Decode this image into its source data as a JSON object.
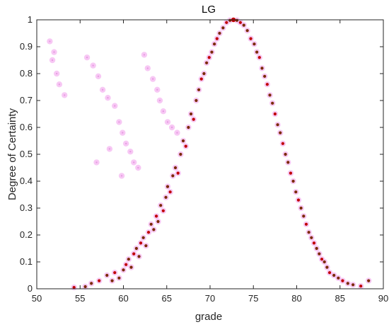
{
  "chart_data": {
    "type": "scatter",
    "title": "LG",
    "xlabel": "grade",
    "ylabel": "Degree of Certainty",
    "xlim": [
      50,
      90
    ],
    "ylim": [
      0,
      1
    ],
    "xticks": [
      50,
      55,
      60,
      65,
      70,
      75,
      80,
      85,
      90
    ],
    "yticks": [
      0,
      0.1,
      0.2,
      0.3,
      0.4,
      0.5,
      0.6,
      0.7,
      0.8,
      0.9,
      1
    ],
    "ytick_labels": [
      "0",
      "0.1",
      "0.2",
      "0.3",
      "0.4",
      "0.5",
      "0.6",
      "0.7",
      "0.8",
      "0.9",
      "1"
    ],
    "grid": false,
    "legend": "none",
    "peak": {
      "x": 72.7,
      "y": 1.0
    },
    "points_left": [
      [
        54.3,
        0.005
      ],
      [
        55.6,
        0.008
      ],
      [
        56.3,
        0.02
      ],
      [
        57.2,
        0.03
      ],
      [
        58.1,
        0.05
      ],
      [
        58.7,
        0.03
      ],
      [
        59.0,
        0.06
      ],
      [
        59.5,
        0.04
      ],
      [
        60.0,
        0.07
      ],
      [
        60.3,
        0.09
      ],
      [
        60.6,
        0.11
      ],
      [
        60.9,
        0.08
      ],
      [
        61.2,
        0.13
      ],
      [
        61.5,
        0.15
      ],
      [
        61.8,
        0.12
      ],
      [
        62.0,
        0.17
      ],
      [
        62.3,
        0.19
      ],
      [
        62.6,
        0.16
      ],
      [
        62.9,
        0.21
      ],
      [
        63.2,
        0.24
      ],
      [
        63.5,
        0.22
      ],
      [
        63.8,
        0.27
      ],
      [
        64.0,
        0.25
      ],
      [
        64.3,
        0.31
      ],
      [
        64.6,
        0.29
      ],
      [
        64.9,
        0.34
      ],
      [
        65.1,
        0.38
      ],
      [
        65.4,
        0.36
      ],
      [
        65.7,
        0.42
      ],
      [
        66.0,
        0.45
      ],
      [
        66.3,
        0.43
      ],
      [
        66.6,
        0.5
      ],
      [
        66.9,
        0.55
      ],
      [
        67.2,
        0.53
      ],
      [
        67.5,
        0.6
      ],
      [
        67.8,
        0.65
      ],
      [
        68.1,
        0.63
      ],
      [
        68.4,
        0.7
      ],
      [
        68.7,
        0.74
      ],
      [
        69.0,
        0.78
      ],
      [
        69.3,
        0.8
      ],
      [
        69.6,
        0.84
      ],
      [
        69.9,
        0.86
      ],
      [
        70.2,
        0.88
      ],
      [
        70.5,
        0.91
      ],
      [
        70.8,
        0.93
      ],
      [
        71.1,
        0.95
      ],
      [
        71.5,
        0.97
      ],
      [
        71.9,
        0.99
      ],
      [
        72.3,
        0.998
      ]
    ],
    "points_right": [
      [
        73.1,
        0.998
      ],
      [
        73.5,
        0.99
      ],
      [
        73.9,
        0.98
      ],
      [
        74.3,
        0.96
      ],
      [
        74.7,
        0.93
      ],
      [
        75.1,
        0.91
      ],
      [
        75.4,
        0.88
      ],
      [
        75.7,
        0.86
      ],
      [
        76.0,
        0.82
      ],
      [
        76.3,
        0.79
      ],
      [
        76.6,
        0.76
      ],
      [
        76.9,
        0.72
      ],
      [
        77.2,
        0.69
      ],
      [
        77.5,
        0.65
      ],
      [
        77.8,
        0.61
      ],
      [
        78.1,
        0.58
      ],
      [
        78.4,
        0.54
      ],
      [
        78.7,
        0.5
      ],
      [
        79.0,
        0.47
      ],
      [
        79.3,
        0.43
      ],
      [
        79.6,
        0.4
      ],
      [
        79.9,
        0.36
      ],
      [
        80.2,
        0.33
      ],
      [
        80.5,
        0.3
      ],
      [
        80.8,
        0.27
      ],
      [
        81.1,
        0.24
      ],
      [
        81.4,
        0.21
      ],
      [
        81.7,
        0.19
      ],
      [
        82.0,
        0.17
      ],
      [
        82.3,
        0.15
      ],
      [
        82.6,
        0.13
      ],
      [
        82.9,
        0.11
      ],
      [
        83.2,
        0.1
      ],
      [
        83.5,
        0.08
      ],
      [
        83.8,
        0.06
      ],
      [
        84.3,
        0.05
      ],
      [
        84.8,
        0.04
      ],
      [
        85.3,
        0.03
      ],
      [
        85.9,
        0.02
      ],
      [
        86.5,
        0.015
      ],
      [
        87.4,
        0.01
      ],
      [
        88.3,
        0.03
      ]
    ],
    "scatter_outliers": [
      [
        51.5,
        0.92
      ],
      [
        52.0,
        0.88
      ],
      [
        51.8,
        0.85
      ],
      [
        52.3,
        0.8
      ],
      [
        52.6,
        0.76
      ],
      [
        53.2,
        0.72
      ],
      [
        55.8,
        0.86
      ],
      [
        56.5,
        0.83
      ],
      [
        57.1,
        0.79
      ],
      [
        57.6,
        0.74
      ],
      [
        58.2,
        0.71
      ],
      [
        59.0,
        0.68
      ],
      [
        59.5,
        0.62
      ],
      [
        59.9,
        0.58
      ],
      [
        60.3,
        0.54
      ],
      [
        60.8,
        0.51
      ],
      [
        61.2,
        0.47
      ],
      [
        61.7,
        0.45
      ],
      [
        62.4,
        0.87
      ],
      [
        62.8,
        0.82
      ],
      [
        63.4,
        0.78
      ],
      [
        63.9,
        0.74
      ],
      [
        64.2,
        0.7
      ],
      [
        64.6,
        0.66
      ],
      [
        65.1,
        0.62
      ],
      [
        65.6,
        0.6
      ],
      [
        66.2,
        0.58
      ],
      [
        56.9,
        0.47
      ],
      [
        58.4,
        0.52
      ],
      [
        59.8,
        0.42
      ]
    ],
    "colors": {
      "point": "#c00000",
      "point_dark": "#7a2a00",
      "halo": "#f4b6f0",
      "axis": "#262626"
    }
  }
}
